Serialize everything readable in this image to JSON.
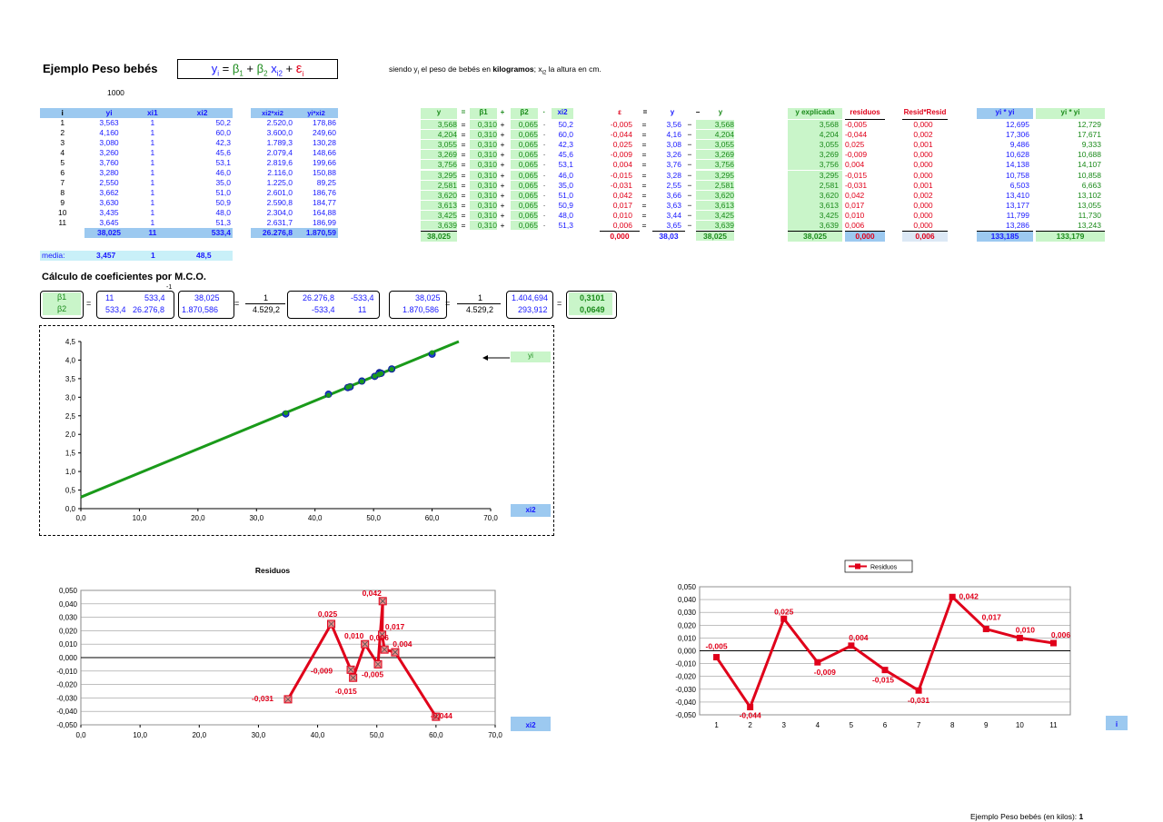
{
  "header": {
    "title": "Ejemplo Peso bebés",
    "formula": {
      "y": "y",
      "yi": "i",
      "eq": " = ",
      "b1": "β",
      "b1s": "1",
      "plus": " + ",
      "b2": "β",
      "b2s": "2",
      "x": " x",
      "xs": "i2",
      "plus2": " + ",
      "e": "ε",
      "es": "i"
    },
    "note_pre": "siendo y",
    "note_i": "i",
    "note_mid": " el peso de bebés en ",
    "note_bold": "kilogramos",
    "note_post": "; x",
    "note_x2": "i2",
    "note_end": "  la altura en cm.",
    "k1000": "1000"
  },
  "data_table": {
    "headers": [
      "i",
      "yi",
      "xi1",
      "xi2"
    ],
    "headers2": [
      "xi2*xi2",
      "yi*xi2"
    ],
    "rows": [
      [
        "1",
        "3,563",
        "1",
        "50,2",
        "2.520,0",
        "178,86"
      ],
      [
        "2",
        "4,160",
        "1",
        "60,0",
        "3.600,0",
        "249,60"
      ],
      [
        "3",
        "3,080",
        "1",
        "42,3",
        "1.789,3",
        "130,28"
      ],
      [
        "4",
        "3,260",
        "1",
        "45,6",
        "2.079,4",
        "148,66"
      ],
      [
        "5",
        "3,760",
        "1",
        "53,1",
        "2.819,6",
        "199,66"
      ],
      [
        "6",
        "3,280",
        "1",
        "46,0",
        "2.116,0",
        "150,88"
      ],
      [
        "7",
        "2,550",
        "1",
        "35,0",
        "1.225,0",
        "89,25"
      ],
      [
        "8",
        "3,662",
        "1",
        "51,0",
        "2.601,0",
        "186,76"
      ],
      [
        "9",
        "3,630",
        "1",
        "50,9",
        "2.590,8",
        "184,77"
      ],
      [
        "10",
        "3,435",
        "1",
        "48,0",
        "2.304,0",
        "164,88"
      ],
      [
        "11",
        "3,645",
        "1",
        "51,3",
        "2.631,7",
        "186,99"
      ]
    ],
    "totals": [
      "38,025",
      "11",
      "533,4",
      "26.276,8",
      "1.870,59"
    ],
    "media_label": "media:",
    "media": [
      "3,457",
      "1",
      "48,5"
    ]
  },
  "fit_table": {
    "headers": [
      "y",
      "=",
      "β1",
      "+",
      "β2",
      "·",
      "xi2"
    ],
    "rows": [
      [
        "3,568",
        "0,310",
        "0,065",
        "50,2"
      ],
      [
        "4,204",
        "0,310",
        "0,065",
        "60,0"
      ],
      [
        "3,055",
        "0,310",
        "0,065",
        "42,3"
      ],
      [
        "3,269",
        "0,310",
        "0,065",
        "45,6"
      ],
      [
        "3,756",
        "0,310",
        "0,065",
        "53,1"
      ],
      [
        "3,295",
        "0,310",
        "0,065",
        "46,0"
      ],
      [
        "2,581",
        "0,310",
        "0,065",
        "35,0"
      ],
      [
        "3,620",
        "0,310",
        "0,065",
        "51,0"
      ],
      [
        "3,613",
        "0,310",
        "0,065",
        "50,9"
      ],
      [
        "3,425",
        "0,310",
        "0,065",
        "48,0"
      ],
      [
        "3,639",
        "0,310",
        "0,065",
        "51,3"
      ]
    ],
    "total": "38,025"
  },
  "resid_table": {
    "headers": [
      "ε",
      "=",
      "y",
      "−",
      "y"
    ],
    "rows": [
      [
        "-0,005",
        "3,56",
        "3,568"
      ],
      [
        "-0,044",
        "4,16",
        "4,204"
      ],
      [
        "0,025",
        "3,08",
        "3,055"
      ],
      [
        "-0,009",
        "3,26",
        "3,269"
      ],
      [
        "0,004",
        "3,76",
        "3,756"
      ],
      [
        "-0,015",
        "3,28",
        "3,295"
      ],
      [
        "-0,031",
        "2,55",
        "2,581"
      ],
      [
        "0,042",
        "3,66",
        "3,620"
      ],
      [
        "0,017",
        "3,63",
        "3,613"
      ],
      [
        "0,010",
        "3,44",
        "3,425"
      ],
      [
        "0,006",
        "3,65",
        "3,639"
      ]
    ],
    "totals": [
      "0,000",
      "38,03",
      "38,025"
    ]
  },
  "right_table": {
    "headers": [
      "y explicada",
      "residuos",
      "Resid*Resid",
      "yi * yi",
      "yi * yi"
    ],
    "rows": [
      [
        "3,568",
        "-0,005",
        "0,000",
        "12,695",
        "12,729"
      ],
      [
        "4,204",
        "-0,044",
        "0,002",
        "17,306",
        "17,671"
      ],
      [
        "3,055",
        "0,025",
        "0,001",
        "9,486",
        "9,333"
      ],
      [
        "3,269",
        "-0,009",
        "0,000",
        "10,628",
        "10,688"
      ],
      [
        "3,756",
        "0,004",
        "0,000",
        "14,138",
        "14,107"
      ],
      [
        "3,295",
        "-0,015",
        "0,000",
        "10,758",
        "10,858"
      ],
      [
        "2,581",
        "-0,031",
        "0,001",
        "6,503",
        "6,663"
      ],
      [
        "3,620",
        "0,042",
        "0,002",
        "13,410",
        "13,102"
      ],
      [
        "3,613",
        "0,017",
        "0,000",
        "13,177",
        "13,055"
      ],
      [
        "3,425",
        "0,010",
        "0,000",
        "11,799",
        "11,730"
      ],
      [
        "3,639",
        "0,006",
        "0,000",
        "13,286",
        "13,243"
      ]
    ],
    "totals": [
      "38,025",
      "0,000",
      "0,006",
      "133,185",
      "133,179"
    ]
  },
  "mco": {
    "title": "Cálculo de coeficientes por M.C.O.",
    "b1": "β1",
    "b2": "β2",
    "m11": "11",
    "m12": "533,4",
    "m21": "533,4",
    "m22": "26.276,8",
    "inv": "-1",
    "v1": "38,025",
    "v2": "1.870,586",
    "f1n": "1",
    "f1d": "4.529,2",
    "a11": "26.276,8",
    "a12": "-533,4",
    "a21": "-533,4",
    "a22": "11",
    "f2n": "1",
    "f2d": "4.529,2",
    "p1": "1.404,694",
    "p2": "293,912",
    "r1": "0,3101",
    "r2": "0,0649"
  },
  "scatter_chart": {
    "yhat_label": "yi",
    "x_label": "xi2"
  },
  "chart_data": [
    {
      "type": "scatter",
      "title": "",
      "x": [
        50.2,
        60.0,
        42.3,
        45.6,
        53.1,
        46.0,
        35.0,
        51.0,
        50.9,
        48.0,
        51.3
      ],
      "y": [
        3.563,
        4.16,
        3.08,
        3.26,
        3.76,
        3.28,
        2.55,
        3.662,
        3.63,
        3.435,
        3.645
      ],
      "yhat": [
        3.568,
        4.204,
        3.055,
        3.269,
        3.756,
        3.295,
        2.581,
        3.62,
        3.613,
        3.425,
        3.639
      ],
      "line": {
        "intercept": 0.3101,
        "slope": 0.0649
      },
      "xlim": [
        0,
        70
      ],
      "ylim": [
        0,
        4.5
      ],
      "xticks": [
        "0,0",
        "10,0",
        "20,0",
        "30,0",
        "40,0",
        "50,0",
        "60,0",
        "70,0"
      ],
      "yticks": [
        "0,0",
        "0,5",
        "1,0",
        "1,5",
        "2,0",
        "2,5",
        "3,0",
        "3,5",
        "4,0",
        "4,5"
      ],
      "colors": {
        "points": "#1a3ad0",
        "line": "#1a9a1a"
      }
    },
    {
      "type": "line",
      "title": "Residuos",
      "x": [
        35.0,
        42.3,
        45.6,
        46.0,
        48.0,
        50.2,
        51.0,
        50.9,
        51.3,
        53.1,
        60.0
      ],
      "y": [
        -0.031,
        0.025,
        -0.009,
        -0.015,
        0.01,
        -0.005,
        0.042,
        0.017,
        0.006,
        0.004,
        -0.044
      ],
      "labels": [
        "-0,031",
        "0,025",
        "-0,009",
        "-0,015",
        "0,010",
        "-0,005",
        "0,042",
        "0,017",
        "0,006",
        "0,004",
        "-0,044"
      ],
      "xlim": [
        0,
        70
      ],
      "ylim": [
        -0.05,
        0.05
      ],
      "xticks": [
        "0,0",
        "10,0",
        "20,0",
        "30,0",
        "40,0",
        "50,0",
        "60,0",
        "70,0"
      ],
      "yticks": [
        "-0,050",
        "-0,040",
        "-0,030",
        "-0,020",
        "-0,010",
        "0,000",
        "0,010",
        "0,020",
        "0,030",
        "0,040",
        "0,050"
      ],
      "xlabel": "xi2",
      "color": "#e0001a"
    },
    {
      "type": "line",
      "title": "",
      "legend": "Residuos",
      "categories": [
        "1",
        "2",
        "3",
        "4",
        "5",
        "6",
        "7",
        "8",
        "9",
        "10",
        "11"
      ],
      "values": [
        -0.005,
        -0.044,
        0.025,
        -0.009,
        0.004,
        -0.015,
        -0.031,
        0.042,
        0.017,
        0.01,
        0.006
      ],
      "labels": [
        "-0,005",
        "-0,044",
        "0,025",
        "-0,009",
        "0,004",
        "-0,015",
        "-0,031",
        "0,042",
        "0,017",
        "0,010",
        "0,006"
      ],
      "ylim": [
        -0.05,
        0.05
      ],
      "yticks": [
        "-0,050",
        "-0,040",
        "-0,030",
        "-0,020",
        "-0,010",
        "0,000",
        "0,010",
        "0,020",
        "0,030",
        "0,040",
        "0,050"
      ],
      "xlabel": "i",
      "color": "#e0001a"
    }
  ],
  "footer": {
    "text": "Ejemplo Peso bebés (en kilos): ",
    "page": "1"
  }
}
